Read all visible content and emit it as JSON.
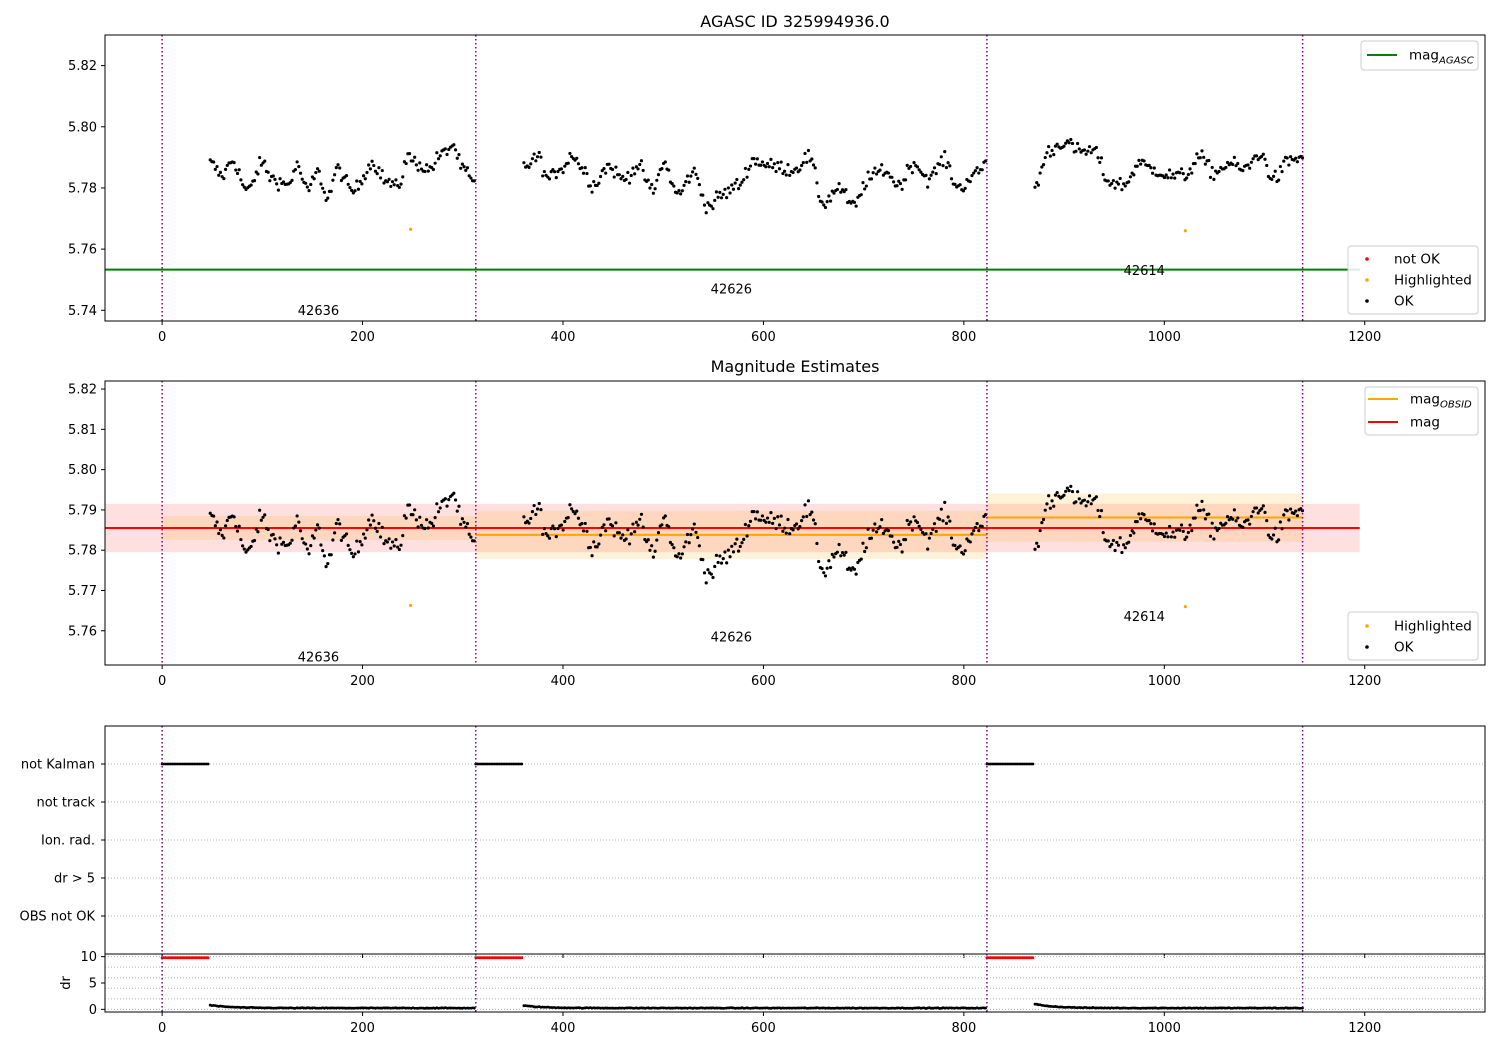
{
  "chart_data": [
    {
      "type": "scatter",
      "title": "AGASC ID 325994936.0",
      "xlim": [
        -57,
        1320
      ],
      "ylim": [
        5.7365,
        5.83
      ],
      "yticks": [
        5.74,
        5.76,
        5.78,
        5.8,
        5.82
      ],
      "xticks": [
        0,
        200,
        400,
        600,
        800,
        1000,
        1200
      ],
      "grid": false,
      "obs_boundaries": [
        0,
        313,
        823,
        1138
      ],
      "obs_labels": [
        {
          "text": "42636",
          "x": 156,
          "y": 5.74
        },
        {
          "text": "42626",
          "x": 568,
          "y": 5.747
        },
        {
          "text": "42614",
          "x": 980,
          "y": 5.753
        }
      ],
      "hlines": [
        {
          "name": "mag_AGASC",
          "y": 5.7533,
          "x_range": [
            -57,
            1195
          ],
          "color": "#008000"
        }
      ],
      "highlighted_points": [
        {
          "x": 248,
          "y": 5.7665
        },
        {
          "x": 1021,
          "y": 5.766
        }
      ],
      "legends": [
        {
          "placement": "upper-right",
          "entries": [
            {
              "label": "mag",
              "sub": "AGASC",
              "marker": "line",
              "color": "#008000"
            }
          ]
        },
        {
          "placement": "lower-right",
          "entries": [
            {
              "label": "not OK",
              "marker": "dot",
              "color": "#ff0000"
            },
            {
              "label": "Highlighted",
              "marker": "dot",
              "color": "#ffa500"
            },
            {
              "label": "OK",
              "marker": "dot",
              "color": "#000000"
            }
          ]
        }
      ]
    },
    {
      "type": "scatter",
      "title": "Magnitude Estimates",
      "xlim": [
        -57,
        1320
      ],
      "ylim": [
        5.7515,
        5.822
      ],
      "yticks": [
        5.76,
        5.77,
        5.78,
        5.79,
        5.8,
        5.81,
        5.82
      ],
      "xticks": [
        0,
        200,
        400,
        600,
        800,
        1000,
        1200
      ],
      "grid": false,
      "obs_boundaries": [
        0,
        313,
        823,
        1138
      ],
      "obs_labels": [
        {
          "text": "42636",
          "x": 156,
          "y": 5.7535
        },
        {
          "text": "42626",
          "x": 568,
          "y": 5.7585
        },
        {
          "text": "42614",
          "x": 980,
          "y": 5.7635
        }
      ],
      "mag": {
        "y": 5.7855,
        "band": [
          5.7795,
          5.7915
        ],
        "x_range": [
          -57,
          1195
        ],
        "color": "#ff0000"
      },
      "mag_obsid": [
        {
          "x_range": [
            0,
            313
          ],
          "y": 5.7855,
          "band": [
            5.7825,
            5.7885
          ]
        },
        {
          "x_range": [
            313,
            823
          ],
          "y": 5.7838,
          "band": [
            5.7778,
            5.7898
          ]
        },
        {
          "x_range": [
            823,
            1138
          ],
          "y": 5.7881,
          "band": [
            5.7821,
            5.7941
          ]
        }
      ],
      "highlighted_points": [
        {
          "x": 248,
          "y": 5.7663
        },
        {
          "x": 1021,
          "y": 5.766
        }
      ],
      "legends": [
        {
          "placement": "upper-right",
          "entries": [
            {
              "label": "mag",
              "sub": "OBSID",
              "marker": "line",
              "color": "#ffa500"
            },
            {
              "label": "mag",
              "sub": "",
              "marker": "line",
              "color": "#ff0000"
            }
          ]
        },
        {
          "placement": "lower-right",
          "entries": [
            {
              "label": "Highlighted",
              "marker": "dot",
              "color": "#ffa500"
            },
            {
              "label": "OK",
              "marker": "dot",
              "color": "#000000"
            }
          ]
        }
      ]
    },
    {
      "type": "scatter",
      "title": "",
      "xlim": [
        -57,
        1320
      ],
      "categories": [
        "not Kalman",
        "not track",
        "Ion. rad.",
        "dr > 5",
        "OBS not OK"
      ],
      "flag_segments": [
        {
          "category": "not Kalman",
          "x_range": [
            0,
            47
          ]
        },
        {
          "category": "not Kalman",
          "x_range": [
            313,
            360
          ]
        },
        {
          "category": "not Kalman",
          "x_range": [
            823,
            870
          ]
        }
      ],
      "obs_boundaries": [
        0,
        313,
        823,
        1138
      ],
      "grid": true
    },
    {
      "type": "scatter",
      "title": "",
      "ylabel": "dr",
      "xlim": [
        -57,
        1320
      ],
      "ylim": [
        -0.5,
        10.5
      ],
      "yticks": [
        0,
        5,
        10
      ],
      "xticks": [
        0,
        200,
        400,
        600,
        800,
        1000,
        1200
      ],
      "obs_boundaries": [
        0,
        313,
        823,
        1138
      ],
      "clipped_segments": [
        {
          "x_range": [
            0,
            47
          ],
          "y": 9.8,
          "color": "#ff0000"
        },
        {
          "x_range": [
            313,
            360
          ],
          "y": 9.8,
          "color": "#ff0000"
        },
        {
          "x_range": [
            823,
            870
          ],
          "y": 9.8,
          "color": "#ff0000"
        }
      ],
      "dr_segments": [
        {
          "x_range": [
            48,
            313
          ],
          "start": 0.8,
          "level": 0.25
        },
        {
          "x_range": [
            361,
            823
          ],
          "start": 0.7,
          "level": 0.25
        },
        {
          "x_range": [
            871,
            1138
          ],
          "start": 1.0,
          "level": 0.25
        }
      ]
    }
  ],
  "series_profile": {
    "sample_step": 1.7,
    "segments": [
      {
        "x_range": [
          48,
          313
        ],
        "knots": [
          [
            48,
            5.788
          ],
          [
            60,
            5.784
          ],
          [
            70,
            5.789
          ],
          [
            85,
            5.779
          ],
          [
            100,
            5.788
          ],
          [
            110,
            5.783
          ],
          [
            125,
            5.781
          ],
          [
            135,
            5.787
          ],
          [
            145,
            5.779
          ],
          [
            155,
            5.785
          ],
          [
            165,
            5.777
          ],
          [
            175,
            5.786
          ],
          [
            190,
            5.779
          ],
          [
            210,
            5.788
          ],
          [
            225,
            5.782
          ],
          [
            235,
            5.78
          ],
          [
            245,
            5.79
          ],
          [
            255,
            5.788
          ],
          [
            265,
            5.786
          ],
          [
            280,
            5.791
          ],
          [
            290,
            5.794
          ],
          [
            300,
            5.786
          ],
          [
            313,
            5.781
          ]
        ]
      },
      {
        "x_range": [
          361,
          823
        ],
        "knots": [
          [
            361,
            5.787
          ],
          [
            375,
            5.79
          ],
          [
            385,
            5.783
          ],
          [
            400,
            5.787
          ],
          [
            410,
            5.791
          ],
          [
            420,
            5.786
          ],
          [
            430,
            5.781
          ],
          [
            445,
            5.787
          ],
          [
            460,
            5.783
          ],
          [
            475,
            5.787
          ],
          [
            490,
            5.779
          ],
          [
            500,
            5.788
          ],
          [
            515,
            5.778
          ],
          [
            530,
            5.785
          ],
          [
            545,
            5.774
          ],
          [
            560,
            5.778
          ],
          [
            575,
            5.781
          ],
          [
            590,
            5.789
          ],
          [
            610,
            5.787
          ],
          [
            630,
            5.786
          ],
          [
            645,
            5.79
          ],
          [
            660,
            5.775
          ],
          [
            675,
            5.78
          ],
          [
            690,
            5.774
          ],
          [
            705,
            5.783
          ],
          [
            720,
            5.786
          ],
          [
            735,
            5.781
          ],
          [
            750,
            5.788
          ],
          [
            765,
            5.783
          ],
          [
            780,
            5.789
          ],
          [
            795,
            5.78
          ],
          [
            810,
            5.784
          ],
          [
            823,
            5.788
          ]
        ]
      },
      {
        "x_range": [
          871,
          1138
        ],
        "knots": [
          [
            871,
            5.781
          ],
          [
            885,
            5.792
          ],
          [
            900,
            5.795
          ],
          [
            915,
            5.792
          ],
          [
            930,
            5.792
          ],
          [
            945,
            5.782
          ],
          [
            960,
            5.781
          ],
          [
            975,
            5.788
          ],
          [
            990,
            5.786
          ],
          [
            1005,
            5.784
          ],
          [
            1020,
            5.784
          ],
          [
            1035,
            5.79
          ],
          [
            1050,
            5.785
          ],
          [
            1065,
            5.788
          ],
          [
            1080,
            5.786
          ],
          [
            1095,
            5.791
          ],
          [
            1110,
            5.783
          ],
          [
            1125,
            5.789
          ],
          [
            1138,
            5.79
          ]
        ]
      }
    ]
  }
}
